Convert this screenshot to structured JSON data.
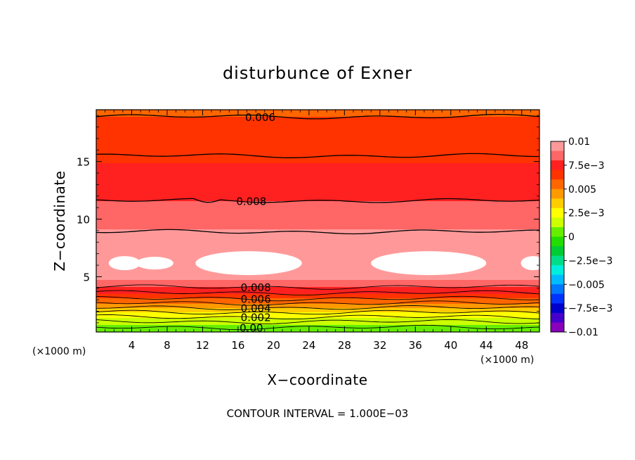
{
  "chart_data": {
    "type": "contour",
    "title": "disturbunce of Exner",
    "xlabel": "X−coordinate",
    "ylabel": "Z−coordinate",
    "x_unit_left": "(×1000 m)",
    "x_unit_right": "(×1000 m)",
    "xlim": [
      0,
      50
    ],
    "ylim": [
      0.2,
      19.5
    ],
    "x_ticks": [
      4,
      8,
      12,
      16,
      20,
      24,
      28,
      32,
      36,
      40,
      44,
      48
    ],
    "x_tick_labels": [
      "4",
      "8",
      "12",
      "16",
      "20",
      "24",
      "28",
      "32",
      "36",
      "40",
      "44",
      "48"
    ],
    "y_ticks": [
      5,
      10,
      15
    ],
    "y_tick_labels": [
      "5",
      "10",
      "15"
    ],
    "colorbar": {
      "min": -0.01,
      "max": 0.01,
      "tick_values": [
        0.01,
        0.0075,
        0.005,
        0.0025,
        0,
        -0.0025,
        -0.005,
        -0.0075,
        -0.01
      ],
      "tick_labels": [
        "0.01",
        "7.5e−3",
        "0.005",
        "2.5e−3",
        "0",
        "−2.5e−3",
        "−0.005",
        "−7.5e−3",
        "−0.01"
      ],
      "colors": [
        "#ff9999",
        "#ff6666",
        "#ff2020",
        "#ff3300",
        "#ff6600",
        "#ff9900",
        "#ffcc00",
        "#ffff00",
        "#ccff00",
        "#66ee00",
        "#22dd00",
        "#00cc33",
        "#00dd88",
        "#00eedd",
        "#00bbff",
        "#0077ff",
        "#0033ff",
        "#0000cc",
        "#4400cc",
        "#8800bb"
      ]
    },
    "vertical_profile": [
      {
        "z": 0.2,
        "value": 0.0002
      },
      {
        "z": 0.6,
        "value": 0.0006
      },
      {
        "z": 1.2,
        "value": 0.0017
      },
      {
        "z": 1.8,
        "value": 0.0028
      },
      {
        "z": 2.4,
        "value": 0.0042
      },
      {
        "z": 3.0,
        "value": 0.0058
      },
      {
        "z": 3.6,
        "value": 0.0072
      },
      {
        "z": 4.3,
        "value": 0.0083
      },
      {
        "z": 5.0,
        "value": 0.0096
      },
      {
        "z": 6.5,
        "value": 0.0103
      },
      {
        "z": 8.0,
        "value": 0.0096
      },
      {
        "z": 9.5,
        "value": 0.0088
      },
      {
        "z": 11.6,
        "value": 0.008
      },
      {
        "z": 13.5,
        "value": 0.0074
      },
      {
        "z": 15.5,
        "value": 0.0068
      },
      {
        "z": 17.0,
        "value": 0.0064
      },
      {
        "z": 18.9,
        "value": 0.006
      },
      {
        "z": 19.5,
        "value": 0.0058
      }
    ],
    "contour_lines": [
      {
        "z": 18.9,
        "value": 0.006
      },
      {
        "z": 15.5,
        "value": 0.007
      },
      {
        "z": 11.6,
        "value": 0.008
      },
      {
        "z": 8.9,
        "value": 0.009
      },
      {
        "z": 4.1,
        "value": 0.008
      },
      {
        "z": 3.6,
        "value": 0.007
      },
      {
        "z": 3.1,
        "value": 0.006
      },
      {
        "z": 2.7,
        "value": 0.005
      },
      {
        "z": 2.3,
        "value": 0.004
      },
      {
        "z": 1.9,
        "value": 0.003
      },
      {
        "z": 1.5,
        "value": 0.002
      },
      {
        "z": 1.1,
        "value": 0.001
      },
      {
        "z": 0.6,
        "value": 0.0
      }
    ],
    "contour_labels": [
      {
        "text": "0.006",
        "x": 18.5,
        "z": 18.9
      },
      {
        "text": "0.008",
        "x": 17.5,
        "z": 11.6
      },
      {
        "text": "0.008",
        "x": 18.0,
        "z": 4.1
      },
      {
        "text": "0.006",
        "x": 18.0,
        "z": 3.1
      },
      {
        "text": "0.004",
        "x": 18.0,
        "z": 2.3
      },
      {
        "text": "0.002",
        "x": 18.0,
        "z": 1.5
      },
      {
        "text": "0.00",
        "x": 17.5,
        "z": 0.6
      }
    ],
    "footnote": "CONTOUR INTERVAL = 1.000E−03"
  }
}
